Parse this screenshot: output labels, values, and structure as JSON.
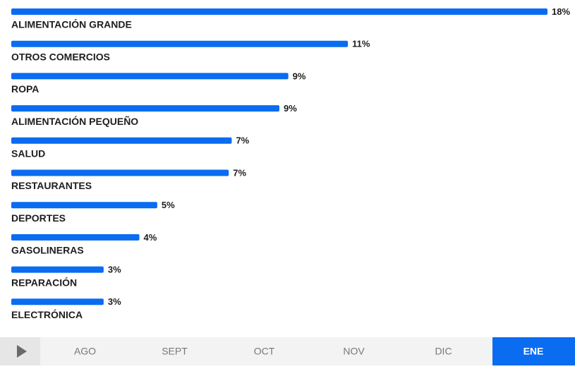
{
  "chart_data": {
    "type": "bar",
    "orientation": "horizontal",
    "color": "#0a6cf0",
    "categories": [
      "ALIMENTACIÓN GRANDE",
      "OTROS COMERCIOS",
      "ROPA",
      "ALIMENTACIÓN PEQUEÑO",
      "SALUD",
      "RESTAURANTES",
      "DEPORTES",
      "GASOLINERAS",
      "REPARACIÓN",
      "ELECTRÓNICA"
    ],
    "values": [
      18,
      11.3,
      9.3,
      9.0,
      7.4,
      7.3,
      4.9,
      4.3,
      3.1,
      3.1
    ],
    "value_labels": [
      "18%",
      "11%",
      "9%",
      "9%",
      "7%",
      "7%",
      "5%",
      "4%",
      "3%",
      "3%"
    ]
  },
  "timeline": {
    "labels": [
      "AGO",
      "SEPT",
      "OCT",
      "NOV",
      "DIC",
      "ENE"
    ],
    "active": 5
  }
}
